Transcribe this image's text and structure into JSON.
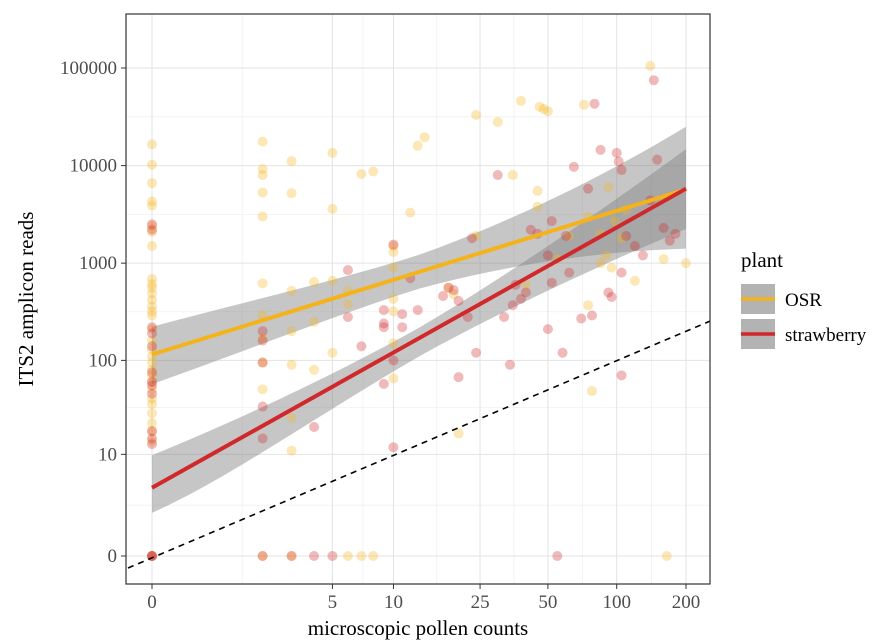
{
  "chart_data": {
    "type": "scatter",
    "title": "",
    "xlabel": "microscopic pollen counts",
    "ylabel": "ITS2 amplicon reads",
    "x_scale": "log(1+x)",
    "y_scale": "log(1+y)",
    "x_ticks": [
      0,
      5,
      10,
      25,
      50,
      100,
      200
    ],
    "x_tick_labels": [
      "0",
      "5",
      "10",
      "25",
      "50",
      "100",
      "200"
    ],
    "y_ticks": [
      0,
      10,
      100,
      1000,
      10000,
      100000
    ],
    "y_tick_labels": [
      "0",
      "10",
      "100",
      "1000",
      "10000",
      "100000"
    ],
    "xlim": [
      0,
      230
    ],
    "ylim": [
      0,
      400000
    ],
    "grid": true,
    "legend": {
      "title": "plant",
      "position": "right"
    },
    "reference_line": {
      "style": "dashed",
      "color": "#000000",
      "desc": "y = x"
    },
    "series": [
      {
        "name": "OSR",
        "color": "#F5B31B",
        "fit": {
          "x": [
            0,
            200
          ],
          "y": [
            115,
            5700
          ],
          "ci_low": [
            70,
            2200
          ],
          "ci_high": [
            180,
            16000
          ]
        },
        "points": [
          [
            0,
            16500
          ],
          [
            0,
            10200
          ],
          [
            0,
            6600
          ],
          [
            0,
            4300
          ],
          [
            0,
            3900
          ],
          [
            0,
            2400
          ],
          [
            0,
            2100
          ],
          [
            0,
            1500
          ],
          [
            0,
            690
          ],
          [
            0,
            610
          ],
          [
            0,
            560
          ],
          [
            0,
            490
          ],
          [
            0,
            420
          ],
          [
            0,
            360
          ],
          [
            0,
            320
          ],
          [
            0,
            290
          ],
          [
            0,
            210
          ],
          [
            0,
            160
          ],
          [
            0,
            130
          ],
          [
            0,
            110
          ],
          [
            0,
            95
          ],
          [
            0,
            80
          ],
          [
            0,
            70
          ],
          [
            0,
            60
          ],
          [
            0,
            50
          ],
          [
            0,
            40
          ],
          [
            0,
            35
          ],
          [
            0,
            28
          ],
          [
            0,
            22
          ],
          [
            0,
            18
          ],
          [
            0,
            14
          ],
          [
            0,
            0
          ],
          [
            2,
            17600
          ],
          [
            2,
            9200
          ],
          [
            2,
            8000
          ],
          [
            2,
            5300
          ],
          [
            2,
            3000
          ],
          [
            2,
            620
          ],
          [
            2,
            290
          ],
          [
            2,
            170
          ],
          [
            2,
            95
          ],
          [
            2,
            50
          ],
          [
            2,
            0
          ],
          [
            3,
            11100
          ],
          [
            3,
            5200
          ],
          [
            3,
            520
          ],
          [
            3,
            200
          ],
          [
            3,
            90
          ],
          [
            3,
            25
          ],
          [
            3,
            11
          ],
          [
            3,
            0
          ],
          [
            4,
            640
          ],
          [
            4,
            250
          ],
          [
            4,
            80
          ],
          [
            5,
            13500
          ],
          [
            5,
            3600
          ],
          [
            5,
            660
          ],
          [
            5,
            120
          ],
          [
            6,
            520
          ],
          [
            6,
            380
          ],
          [
            6,
            0
          ],
          [
            7,
            8200
          ],
          [
            7,
            0
          ],
          [
            8,
            8700
          ],
          [
            8,
            0
          ],
          [
            10,
            1500
          ],
          [
            10,
            1300
          ],
          [
            10,
            900
          ],
          [
            10,
            430
          ],
          [
            10,
            320
          ],
          [
            10,
            150
          ],
          [
            10,
            65
          ],
          [
            12,
            3300
          ],
          [
            13,
            16000
          ],
          [
            14,
            19500
          ],
          [
            18,
            560
          ],
          [
            19,
            480
          ],
          [
            20,
            17
          ],
          [
            24,
            33000
          ],
          [
            24,
            1900
          ],
          [
            30,
            28000
          ],
          [
            35,
            8000
          ],
          [
            38,
            46000
          ],
          [
            40,
            600
          ],
          [
            45,
            5500
          ],
          [
            45,
            3800
          ],
          [
            46,
            40000
          ],
          [
            48,
            38000
          ],
          [
            50,
            36000
          ],
          [
            55,
            1100
          ],
          [
            62,
            1900
          ],
          [
            72,
            42000
          ],
          [
            75,
            3000
          ],
          [
            75,
            370
          ],
          [
            78,
            48
          ],
          [
            85,
            2000
          ],
          [
            85,
            1000
          ],
          [
            90,
            1200
          ],
          [
            92,
            6000
          ],
          [
            95,
            900
          ],
          [
            98,
            2700
          ],
          [
            105,
            1800
          ],
          [
            110,
            3500
          ],
          [
            120,
            660
          ],
          [
            140,
            105000
          ],
          [
            160,
            1100
          ],
          [
            165,
            0
          ],
          [
            200,
            1000
          ]
        ]
      },
      {
        "name": "strawberry",
        "color": "#D0282B",
        "fit": {
          "x": [
            0,
            200
          ],
          "y": [
            4,
            5800
          ],
          "ci_low": [
            2.3,
            3000
          ],
          "ci_high": [
            7.5,
            11000
          ]
        },
        "points": [
          [
            0,
            2500
          ],
          [
            0,
            2200
          ],
          [
            0,
            220
          ],
          [
            0,
            190
          ],
          [
            0,
            140
          ],
          [
            0,
            75
          ],
          [
            0,
            60
          ],
          [
            0,
            55
          ],
          [
            0,
            45
          ],
          [
            0,
            18
          ],
          [
            0,
            15
          ],
          [
            0,
            13
          ],
          [
            0,
            0
          ],
          [
            0,
            0
          ],
          [
            0,
            0
          ],
          [
            2,
            200
          ],
          [
            2,
            160
          ],
          [
            2,
            95
          ],
          [
            2,
            33
          ],
          [
            2,
            15
          ],
          [
            2,
            0
          ],
          [
            3,
            0
          ],
          [
            4,
            20
          ],
          [
            4,
            0
          ],
          [
            5,
            0
          ],
          [
            6,
            850
          ],
          [
            6,
            280
          ],
          [
            7,
            140
          ],
          [
            9,
            330
          ],
          [
            9,
            240
          ],
          [
            9,
            220
          ],
          [
            9,
            57
          ],
          [
            10,
            1550
          ],
          [
            10,
            100
          ],
          [
            10,
            12
          ],
          [
            11,
            300
          ],
          [
            11,
            220
          ],
          [
            12,
            700
          ],
          [
            13,
            330
          ],
          [
            17,
            460
          ],
          [
            18,
            560
          ],
          [
            19,
            530
          ],
          [
            20,
            410
          ],
          [
            20,
            67
          ],
          [
            22,
            280
          ],
          [
            23,
            1800
          ],
          [
            24,
            120
          ],
          [
            30,
            8000
          ],
          [
            32,
            280
          ],
          [
            34,
            90
          ],
          [
            35,
            370
          ],
          [
            36,
            600
          ],
          [
            38,
            430
          ],
          [
            40,
            500
          ],
          [
            42,
            2200
          ],
          [
            45,
            2000
          ],
          [
            50,
            1200
          ],
          [
            52,
            630
          ],
          [
            50,
            210
          ],
          [
            52,
            2700
          ],
          [
            55,
            0
          ],
          [
            58,
            120
          ],
          [
            60,
            1900
          ],
          [
            62,
            800
          ],
          [
            65,
            9700
          ],
          [
            70,
            270
          ],
          [
            75,
            5800
          ],
          [
            78,
            290
          ],
          [
            80,
            43000
          ],
          [
            85,
            14500
          ],
          [
            92,
            500
          ],
          [
            95,
            450
          ],
          [
            100,
            13500
          ],
          [
            102,
            11000
          ],
          [
            105,
            9000
          ],
          [
            105,
            800
          ],
          [
            105,
            70
          ],
          [
            110,
            1900
          ],
          [
            120,
            1500
          ],
          [
            130,
            1200
          ],
          [
            140,
            4400
          ],
          [
            145,
            75000
          ],
          [
            150,
            11500
          ],
          [
            160,
            2300
          ],
          [
            170,
            1700
          ],
          [
            180,
            2000
          ]
        ]
      }
    ]
  }
}
